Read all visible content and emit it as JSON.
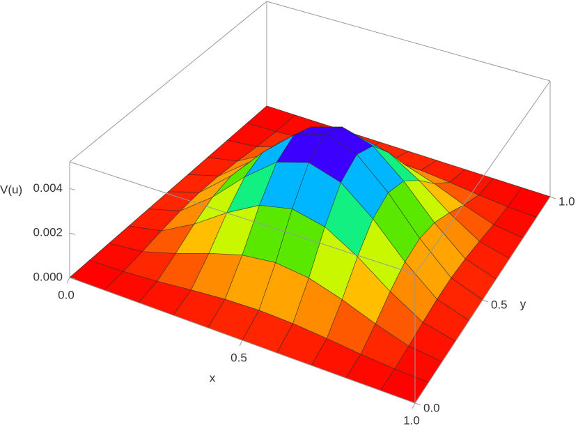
{
  "chart_data": {
    "type": "surface",
    "x_label": "x",
    "y_label": "y",
    "z_label": "V(u)",
    "x": [
      0,
      0.1,
      0.2,
      0.3,
      0.4,
      0.5,
      0.6,
      0.7,
      0.8,
      0.9,
      1
    ],
    "y": [
      0,
      0.1,
      0.2,
      0.3,
      0.4,
      0.5,
      0.6,
      0.7,
      0.8,
      0.9,
      1
    ],
    "z": [
      [
        0,
        0,
        0,
        0,
        0,
        0,
        0,
        0,
        0,
        0,
        0
      ],
      [
        0,
        5e-05,
        0.00016,
        0.00031,
        0.00043,
        0.00048,
        0.00043,
        0.00031,
        0.00016,
        5e-05,
        0
      ],
      [
        0,
        0.00016,
        0.0006,
        0.00113,
        0.00156,
        0.00173,
        0.00156,
        0.00113,
        0.0006,
        0.00016,
        0
      ],
      [
        0,
        0.00031,
        0.00113,
        0.00214,
        0.00296,
        0.00327,
        0.00296,
        0.00214,
        0.00113,
        0.00031,
        0
      ],
      [
        0,
        0.00043,
        0.00156,
        0.00296,
        0.00409,
        0.00452,
        0.00409,
        0.00296,
        0.00156,
        0.00043,
        0
      ],
      [
        0,
        0.00048,
        0.00173,
        0.00327,
        0.00452,
        0.005,
        0.00452,
        0.00327,
        0.00173,
        0.00048,
        0
      ],
      [
        0,
        0.00043,
        0.00156,
        0.00296,
        0.00409,
        0.00452,
        0.00409,
        0.00296,
        0.00156,
        0.00043,
        0
      ],
      [
        0,
        0.00031,
        0.00113,
        0.00214,
        0.00296,
        0.00327,
        0.00296,
        0.00214,
        0.00113,
        0.00031,
        0
      ],
      [
        0,
        0.00016,
        0.0006,
        0.00113,
        0.00156,
        0.00173,
        0.00156,
        0.00113,
        0.0006,
        0.00016,
        0
      ],
      [
        0,
        5e-05,
        0.00016,
        0.00031,
        0.00043,
        0.00048,
        0.00043,
        0.00031,
        0.00016,
        5e-05,
        0
      ],
      [
        0,
        0,
        0,
        0,
        0,
        0,
        0,
        0,
        0,
        0,
        0
      ]
    ],
    "xlim": [
      0,
      1
    ],
    "ylim": [
      0,
      1
    ],
    "zlim": [
      0,
      0.0052
    ],
    "xticks": [
      {
        "value": 0,
        "label": "0.0"
      },
      {
        "value": 0.5,
        "label": "0.5"
      },
      {
        "value": 1,
        "label": "1.0"
      }
    ],
    "yticks": [
      {
        "value": 0,
        "label": "0.0"
      },
      {
        "value": 0.5,
        "label": "0.5"
      },
      {
        "value": 1,
        "label": "1.0"
      }
    ],
    "zticks": [
      {
        "value": 0,
        "label": "0.000"
      },
      {
        "value": 0.002,
        "label": "0.002"
      },
      {
        "value": 0.004,
        "label": "0.004"
      }
    ],
    "colormap": [
      "#ff0000",
      "#ff8c00",
      "#ffff00",
      "#22e000",
      "#00ffff",
      "#0000ff",
      "#ff00ff"
    ],
    "mesh": true
  }
}
